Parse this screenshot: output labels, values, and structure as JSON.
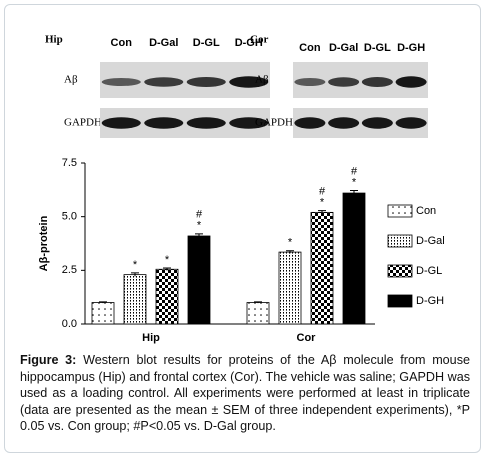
{
  "blots": {
    "left": {
      "tissue": "Hip",
      "lanes": [
        "Con",
        "D-Gal",
        "D-GL",
        "D-GH"
      ],
      "rows": [
        "Aβ",
        "GAPDH"
      ]
    },
    "right": {
      "tissue": "Cor",
      "lanes": [
        "Con",
        "D-Gal",
        "D-GL",
        "D-GH"
      ],
      "rows": [
        "Aβ",
        "GAPDH"
      ]
    }
  },
  "chart_data": {
    "type": "bar",
    "ylabel": "Aβ-protein",
    "categories": [
      "Hip",
      "Cor"
    ],
    "ylim": [
      0,
      7.5
    ],
    "yticks": [
      {
        "value": 0,
        "label": "0.0"
      },
      {
        "value": 2.5,
        "label": "2.5"
      },
      {
        "value": 5,
        "label": "5.0"
      },
      {
        "value": 7.5,
        "label": "7.5"
      }
    ],
    "legend": "right",
    "series": [
      {
        "name": "Con",
        "color": "#000000",
        "pattern": "dots",
        "values": [
          1.0,
          1.0
        ],
        "errors": [
          0.03,
          0.03
        ],
        "marks": [
          null,
          null
        ]
      },
      {
        "name": "D-Gal",
        "color": "#000000",
        "pattern": "vlines",
        "values": [
          2.3,
          3.35
        ],
        "errors": [
          0.08,
          0.06
        ],
        "marks": [
          [
            "*"
          ],
          [
            "*"
          ]
        ]
      },
      {
        "name": "D-GL",
        "color": "#000000",
        "pattern": "checker",
        "values": [
          2.55,
          5.2
        ],
        "errors": [
          0.06,
          0.08
        ],
        "marks": [
          [
            "*"
          ],
          [
            "#",
            "*"
          ]
        ]
      },
      {
        "name": "D-GH",
        "color": "#000000",
        "pattern": "solid",
        "values": [
          4.1,
          6.1
        ],
        "errors": [
          0.1,
          0.12
        ],
        "marks": [
          [
            "#",
            "*"
          ],
          [
            "#",
            "*"
          ]
        ]
      }
    ]
  },
  "caption": {
    "label": "Figure 3:",
    "text": " Western blot results for proteins of the Aβ molecule from mouse hippocampus (Hip) and frontal cortex (Cor). The vehicle was saline; GAPDH was used as a loading control. All experiments were performed at least in triplicate (data are presented as the mean ± SEM of three independent experiments), *P 0.05 vs. Con group; #P<0.05 vs. D-Gal group."
  }
}
